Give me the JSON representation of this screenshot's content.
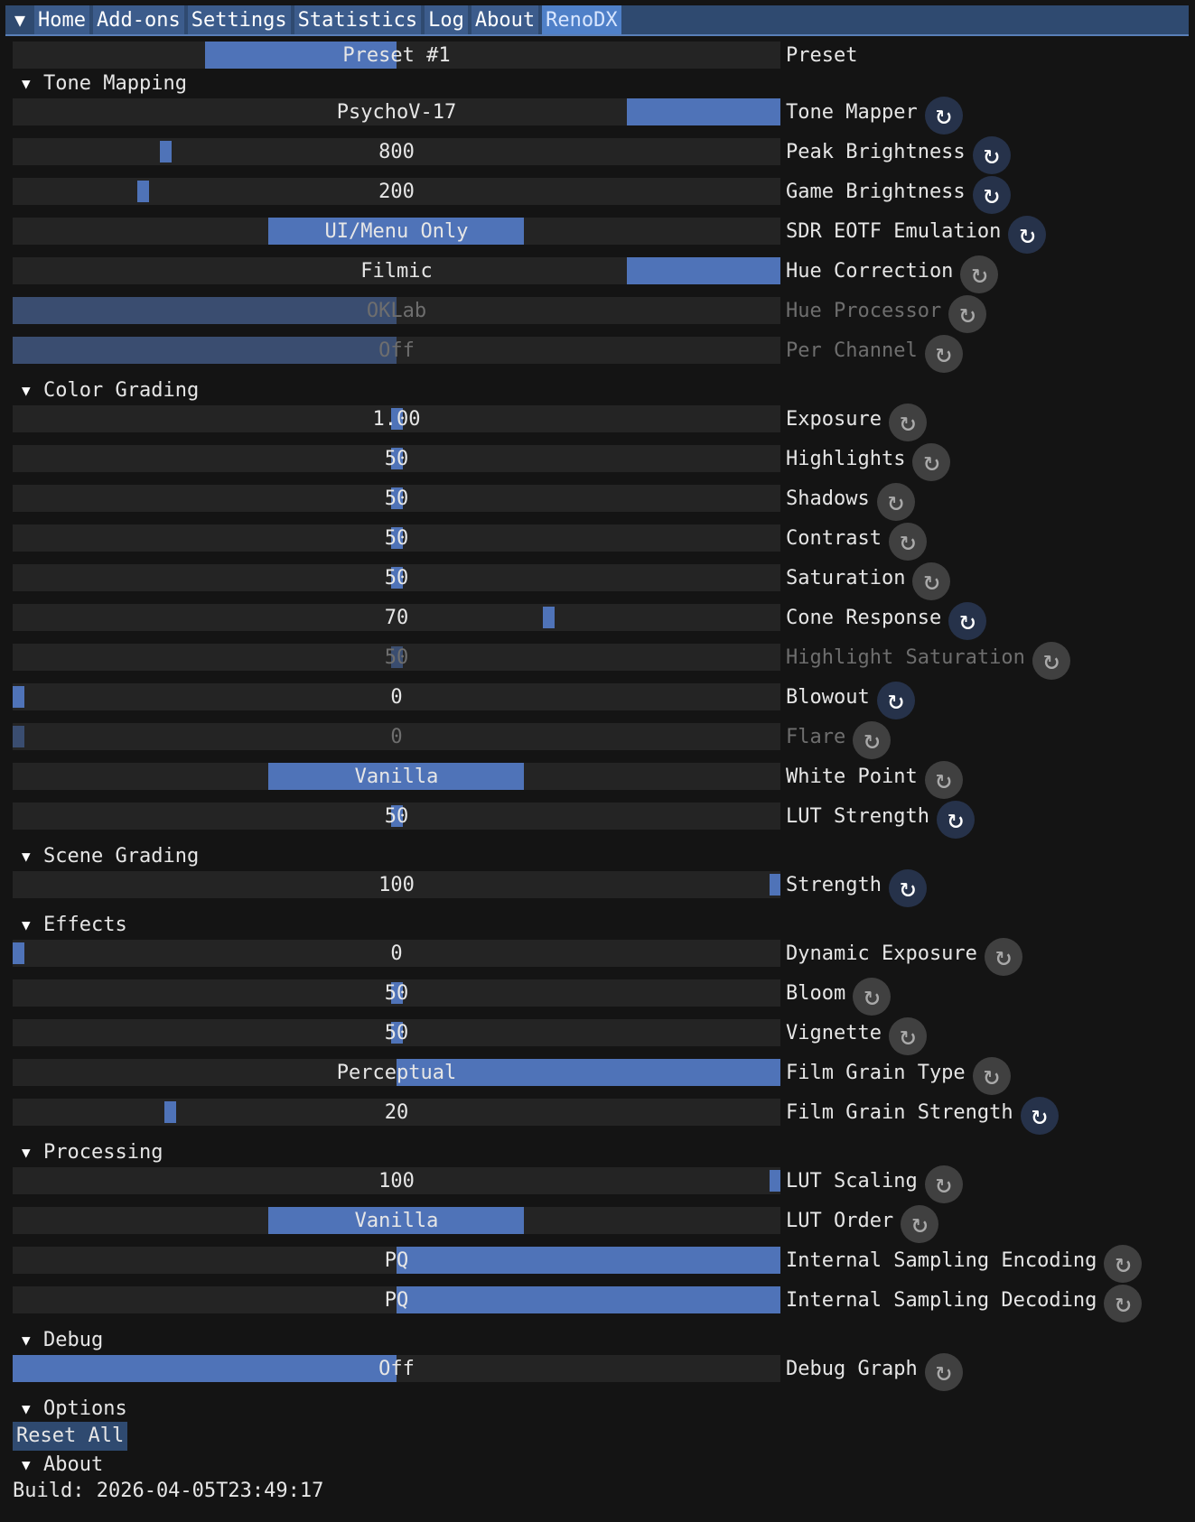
{
  "menubar": {
    "tabs": [
      "Home",
      "Add-ons",
      "Settings",
      "Statistics",
      "Log",
      "About",
      "RenoDX"
    ],
    "active_tab": "RenoDX"
  },
  "preset": {
    "value": "Preset #1",
    "label": "Preset",
    "fill": 0.5
  },
  "sections": [
    {
      "title": "Tone Mapping",
      "rows": [
        {
          "kind": "combo",
          "value": "PsychoV-17",
          "label": "Tone Mapper",
          "fill_from": 0.8,
          "fill_to": 1.0,
          "reset": "active"
        },
        {
          "kind": "slider",
          "value": "800",
          "label": "Peak Brightness",
          "grab": 0.195,
          "reset": "active"
        },
        {
          "kind": "slider",
          "value": "200",
          "label": "Game Brightness",
          "grab": 0.165,
          "reset": "active"
        },
        {
          "kind": "combo",
          "value": "UI/Menu Only",
          "label": "SDR EOTF Emulation",
          "fill_from": 0.333,
          "fill_to": 0.666,
          "reset": "active"
        },
        {
          "kind": "combo",
          "value": "Filmic",
          "label": "Hue Correction",
          "fill_from": 0.8,
          "fill_to": 1.0,
          "reset": "dim"
        },
        {
          "kind": "combo",
          "value": "OKLab",
          "label": "Hue Processor",
          "fill_from": 0.0,
          "fill_to": 0.5,
          "reset": "dim",
          "disabled": true
        },
        {
          "kind": "combo",
          "value": "Off",
          "label": "Per Channel",
          "fill_from": 0.0,
          "fill_to": 0.5,
          "reset": "dim",
          "disabled": true
        }
      ]
    },
    {
      "title": "Color Grading",
      "rows": [
        {
          "kind": "slider",
          "value": "1.00",
          "label": "Exposure",
          "grab": 0.5,
          "reset": "dim"
        },
        {
          "kind": "slider",
          "value": "50",
          "label": "Highlights",
          "grab": 0.5,
          "reset": "dim"
        },
        {
          "kind": "slider",
          "value": "50",
          "label": "Shadows",
          "grab": 0.5,
          "reset": "dim"
        },
        {
          "kind": "slider",
          "value": "50",
          "label": "Contrast",
          "grab": 0.5,
          "reset": "dim"
        },
        {
          "kind": "slider",
          "value": "50",
          "label": "Saturation",
          "grab": 0.5,
          "reset": "dim"
        },
        {
          "kind": "slider",
          "value": "70",
          "label": "Cone Response",
          "grab": 0.7,
          "reset": "active"
        },
        {
          "kind": "slider",
          "value": "50",
          "label": "Highlight Saturation",
          "grab": 0.5,
          "reset": "dim",
          "disabled": true
        },
        {
          "kind": "slider",
          "value": "0",
          "label": "Blowout",
          "grab": 0.0,
          "reset": "active"
        },
        {
          "kind": "slider",
          "value": "0",
          "label": "Flare",
          "grab": 0.0,
          "reset": "dim",
          "disabled": true
        },
        {
          "kind": "combo",
          "value": "Vanilla",
          "label": "White Point",
          "fill_from": 0.333,
          "fill_to": 0.666,
          "reset": "dim"
        },
        {
          "kind": "slider",
          "value": "50",
          "label": "LUT Strength",
          "grab": 0.5,
          "reset": "active"
        }
      ]
    },
    {
      "title": "Scene Grading",
      "rows": [
        {
          "kind": "slider",
          "value": "100",
          "label": "Strength",
          "grab": 1.0,
          "reset": "active"
        }
      ]
    },
    {
      "title": "Effects",
      "rows": [
        {
          "kind": "slider",
          "value": "0",
          "label": "Dynamic Exposure",
          "grab": 0.0,
          "reset": "dim"
        },
        {
          "kind": "slider",
          "value": "50",
          "label": "Bloom",
          "grab": 0.5,
          "reset": "dim"
        },
        {
          "kind": "slider",
          "value": "50",
          "label": "Vignette",
          "grab": 0.5,
          "reset": "dim"
        },
        {
          "kind": "combo",
          "value": "Perceptual",
          "label": "Film Grain Type",
          "fill_from": 0.5,
          "fill_to": 1.0,
          "reset": "dim"
        },
        {
          "kind": "slider",
          "value": "20",
          "label": "Film Grain Strength",
          "grab": 0.2,
          "reset": "active"
        }
      ]
    },
    {
      "title": "Processing",
      "rows": [
        {
          "kind": "slider",
          "value": "100",
          "label": "LUT Scaling",
          "grab": 1.0,
          "reset": "dim"
        },
        {
          "kind": "combo",
          "value": "Vanilla",
          "label": "LUT Order",
          "fill_from": 0.333,
          "fill_to": 0.666,
          "reset": "dim"
        },
        {
          "kind": "combo",
          "value": "PQ",
          "label": "Internal Sampling Encoding",
          "fill_from": 0.5,
          "fill_to": 1.0,
          "reset": "dim"
        },
        {
          "kind": "combo",
          "value": "PQ",
          "label": "Internal Sampling Decoding",
          "fill_from": 0.5,
          "fill_to": 1.0,
          "reset": "dim"
        }
      ]
    },
    {
      "title": "Debug",
      "rows": [
        {
          "kind": "combo",
          "value": "Off",
          "label": "Debug Graph",
          "fill_from": 0.0,
          "fill_to": 0.5,
          "reset": "dim"
        }
      ]
    }
  ],
  "options": {
    "title": "Options",
    "reset_all_label": "Reset All"
  },
  "about": {
    "title": "About",
    "build_text": "Build: 2026-04-05T23:49:17"
  },
  "icons": {
    "menu": "menu-triangle-icon",
    "expand": "triangle-down-icon",
    "reset": "reset-arrow-icon"
  },
  "colors": {
    "accent": "#4f73b8",
    "background": "#141414",
    "frame": "#242424",
    "active_tab": "#4f80c8"
  }
}
